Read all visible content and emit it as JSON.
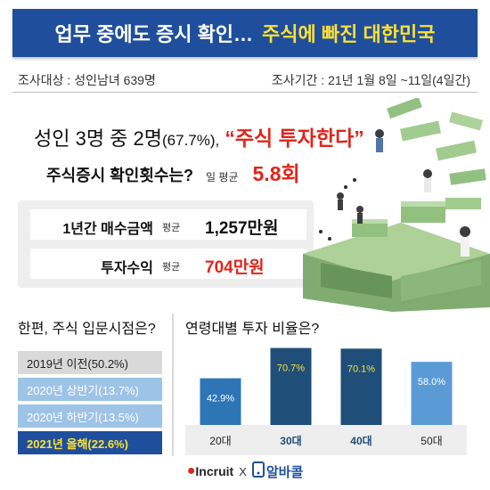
{
  "header": {
    "title_white": "업무 중에도 증시 확인…",
    "title_yellow": "주식에 빠진 대한민국"
  },
  "survey": {
    "target": "조사대상 :  성인남녀 639명",
    "period": "조사기간 : 21년 1월 8일 ~11일(4일간)"
  },
  "headline": {
    "prefix": "성인 3명 중 2명",
    "pct": "(67.7%),",
    "quote": "“주식 투자한다”"
  },
  "check": {
    "question": "주식증시 확인횟수는?",
    "avg_label": "일 평균",
    "value": "5.8회"
  },
  "stats": [
    {
      "label": "1년간 매수금액",
      "avg_label": "평균",
      "value": "1,257만원",
      "color": "#111111"
    },
    {
      "label": "투자수익",
      "avg_label": "평균",
      "value": "704만원",
      "color": "#e0251b"
    }
  ],
  "entry_section": {
    "title": "한편, 주식 입문시점은?",
    "items": [
      {
        "label": "2019년 이전(50.2%)",
        "pct": 50.2,
        "bg": "#d9d9d9",
        "fg": "#222222"
      },
      {
        "label": "2020년 상반기(13.7%)",
        "pct": 13.7,
        "bg": "#9dc3e6",
        "fg": "#ffffff"
      },
      {
        "label": "2020년 하반기(13.5%)",
        "pct": 13.5,
        "bg": "#9dc3e6",
        "fg": "#ffffff"
      },
      {
        "label": "2021년 올해(22.6%)",
        "pct": 22.6,
        "bg": "#1f4f9c",
        "fg": "#ffe033"
      }
    ]
  },
  "chart_data": {
    "type": "bar",
    "title": "연령대별 투자 비율은?",
    "categories": [
      "20대",
      "30대",
      "40대",
      "50대"
    ],
    "values": [
      42.9,
      70.7,
      70.1,
      58.0
    ],
    "value_labels": [
      "42.9%",
      "70.7%",
      "70.1%",
      "58.0%"
    ],
    "bar_colors": [
      "#2e75b6",
      "#1f4e79",
      "#1f4e79",
      "#5b9bd5"
    ],
    "value_label_colors": [
      "#ffffff",
      "#ffe033",
      "#ffe033",
      "#ffffff"
    ],
    "category_label_colors": [
      "#222222",
      "#1f4e79",
      "#1f4e79",
      "#222222"
    ],
    "ylim": [
      0,
      100
    ],
    "grid": false,
    "legend": "none"
  },
  "footer": {
    "incruit": "Incruit",
    "x": "X",
    "albacol": "알바콜"
  },
  "colors": {
    "brand_blue": "#1f4f9c",
    "accent_red": "#e0251b",
    "accent_yellow": "#ffe033"
  }
}
